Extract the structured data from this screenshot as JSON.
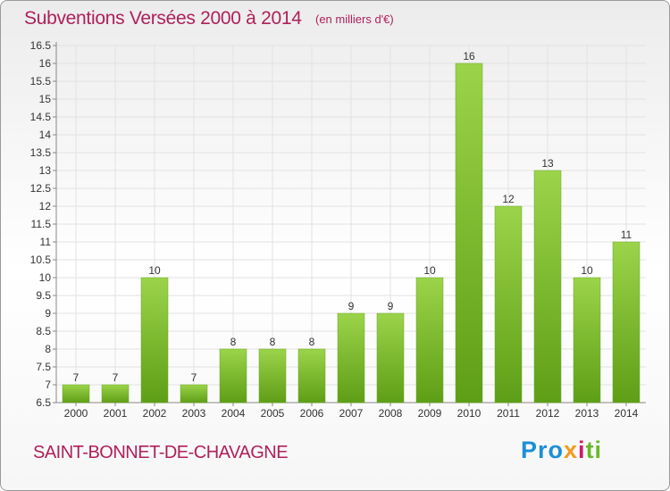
{
  "header": {
    "title": "Subventions Versées 2000 à 2014",
    "subtitle": "(en milliers d'€)"
  },
  "footer": {
    "commune": "SAINT-BONNET-DE-CHAVAGNE",
    "logo": [
      "Pro",
      "x",
      "i",
      "ti"
    ]
  },
  "chart_data": {
    "type": "bar",
    "title": "Subventions Versées 2000 à 2014",
    "subtitle": "(en milliers d'€)",
    "categories": [
      "2000",
      "2001",
      "2002",
      "2003",
      "2004",
      "2005",
      "2006",
      "2007",
      "2008",
      "2009",
      "2010",
      "2011",
      "2012",
      "2013",
      "2014"
    ],
    "values": [
      7,
      7,
      10,
      7,
      8,
      8,
      8,
      9,
      9,
      10,
      16,
      12,
      13,
      10,
      11
    ],
    "ylim": [
      6.5,
      16.5
    ],
    "yticks": [
      "6.5",
      "7",
      "7.5",
      "8",
      "8.5",
      "9",
      "9.5",
      "10",
      "10.5",
      "11",
      "11.5",
      "12",
      "12.5",
      "13",
      "13.5",
      "14",
      "14.5",
      "15",
      "15.5",
      "16",
      "16.5"
    ],
    "grid": true,
    "bar_color": "#7dc52e",
    "bar_color_dark": "#5a9a18"
  }
}
